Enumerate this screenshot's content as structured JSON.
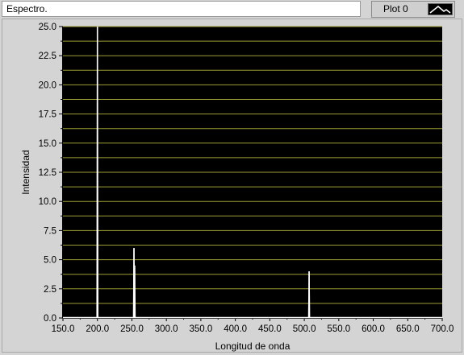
{
  "window": {
    "title": "Espectro."
  },
  "legend": {
    "label": "Plot 0",
    "plot_icon": "line-plot-icon"
  },
  "colors": {
    "plot_background": "#000000",
    "grid": "#9c9c36",
    "trace": "#ffffff",
    "panel": "#d4d4d4"
  },
  "chart_data": {
    "type": "line",
    "xlabel": "Longitud de onda",
    "ylabel": "Intensidad",
    "xlim": [
      150,
      700
    ],
    "ylim": [
      0,
      25
    ],
    "grid": true,
    "x_ticks": [
      "150.0",
      "200.0",
      "250.0",
      "300.0",
      "350.0",
      "400.0",
      "450.0",
      "500.0",
      "550.0",
      "600.0",
      "650.0",
      "700.0"
    ],
    "y_ticks": [
      "0.0",
      "2.5",
      "5.0",
      "7.5",
      "10.0",
      "12.5",
      "15.0",
      "17.5",
      "20.0",
      "22.5",
      "25.0"
    ],
    "series": [
      {
        "peaks": [
          {
            "x": 200,
            "y": 25.0
          },
          {
            "x": 253,
            "y": 6.0
          },
          {
            "x": 254,
            "y": 4.5
          },
          {
            "x": 507,
            "y": 4.0
          }
        ]
      }
    ]
  }
}
